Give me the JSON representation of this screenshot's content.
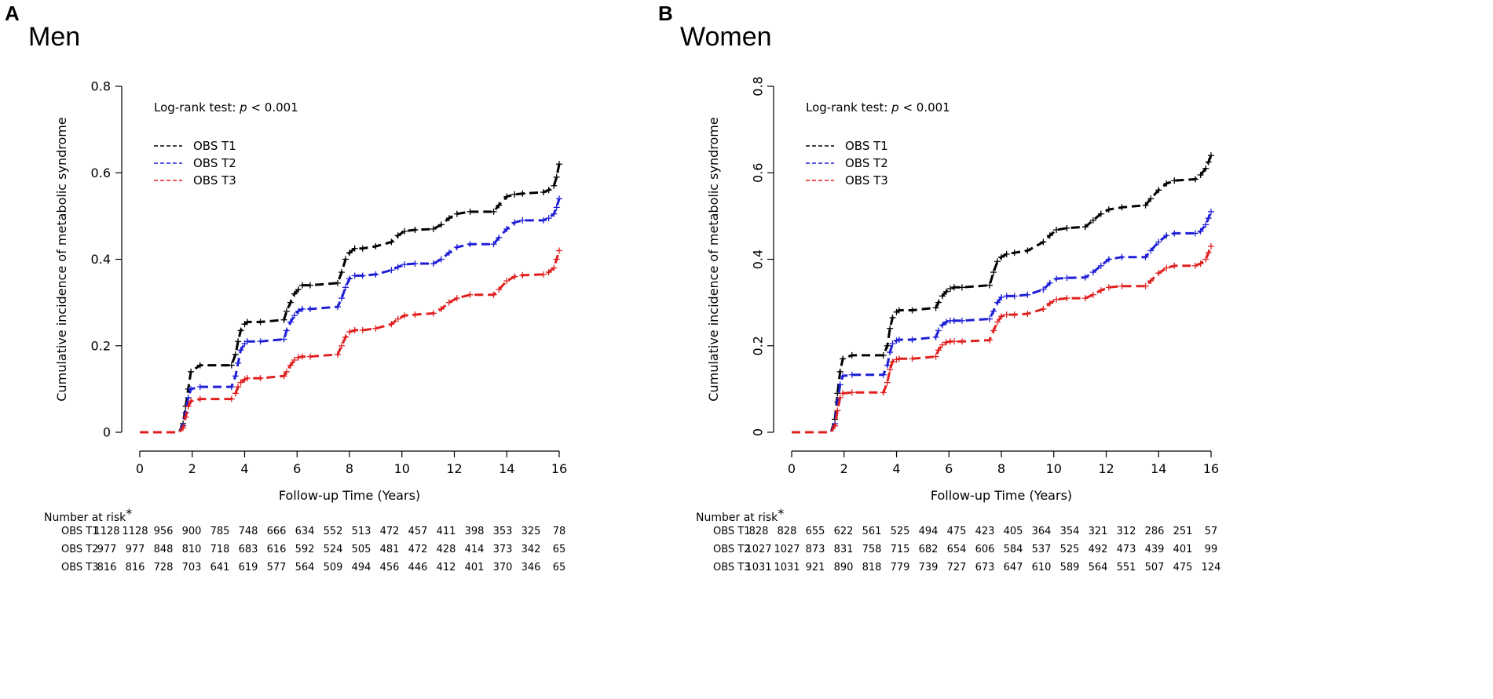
{
  "chart_data": [
    {
      "type": "line",
      "panel_letter": "A",
      "title": "Men",
      "xlabel": "Follow-up Time (Years)",
      "ylabel": "Cumulative incidence of metabolic syndrome",
      "xlim": [
        0,
        16
      ],
      "ylim": [
        0,
        0.8
      ],
      "xticks": [
        "0",
        "2",
        "4",
        "6",
        "8",
        "10",
        "12",
        "14",
        "16"
      ],
      "yticks": [
        "0",
        "0.2",
        "0.4",
        "0.6",
        "0.8"
      ],
      "annotation": {
        "prefix": "Log-rank test:  ",
        "italic": "p",
        "suffix": " < 0.001"
      },
      "series": [
        {
          "name": "OBS T1",
          "color": "#000000",
          "x": [
            0,
            1.5,
            1.65,
            1.75,
            1.85,
            1.95,
            2.3,
            3.5,
            3.65,
            3.75,
            3.85,
            4.0,
            4.1,
            4.6,
            5.5,
            5.6,
            5.75,
            5.9,
            6.05,
            6.2,
            6.5,
            7.55,
            7.7,
            7.85,
            8.0,
            8.2,
            8.5,
            9.0,
            9.6,
            9.85,
            10.1,
            10.5,
            11.2,
            11.5,
            11.8,
            12.1,
            12.6,
            13.5,
            13.7,
            14.0,
            14.3,
            14.6,
            15.4,
            15.6,
            15.8,
            15.9,
            16.0
          ],
          "y": [
            0,
            0,
            0.02,
            0.06,
            0.1,
            0.14,
            0.155,
            0.155,
            0.18,
            0.21,
            0.235,
            0.25,
            0.255,
            0.255,
            0.26,
            0.28,
            0.3,
            0.32,
            0.33,
            0.34,
            0.34,
            0.345,
            0.37,
            0.4,
            0.415,
            0.425,
            0.425,
            0.43,
            0.44,
            0.455,
            0.465,
            0.468,
            0.47,
            0.48,
            0.495,
            0.505,
            0.51,
            0.51,
            0.525,
            0.545,
            0.55,
            0.552,
            0.555,
            0.56,
            0.57,
            0.59,
            0.62
          ]
        },
        {
          "name": "OBS T2",
          "color": "#1f1fd8",
          "x": [
            0,
            1.5,
            1.65,
            1.75,
            1.85,
            1.95,
            2.3,
            3.5,
            3.65,
            3.75,
            3.85,
            4.0,
            4.1,
            4.6,
            5.5,
            5.6,
            5.75,
            5.9,
            6.05,
            6.2,
            6.5,
            7.55,
            7.7,
            7.85,
            8.0,
            8.2,
            8.5,
            9.0,
            9.6,
            9.85,
            10.1,
            10.5,
            11.2,
            11.5,
            11.8,
            12.1,
            12.6,
            13.5,
            13.7,
            14.0,
            14.3,
            14.6,
            15.4,
            15.6,
            15.8,
            15.9,
            16.0
          ],
          "y": [
            0,
            0,
            0.015,
            0.045,
            0.08,
            0.1,
            0.105,
            0.105,
            0.13,
            0.16,
            0.19,
            0.205,
            0.21,
            0.21,
            0.215,
            0.235,
            0.255,
            0.27,
            0.28,
            0.285,
            0.285,
            0.29,
            0.31,
            0.335,
            0.355,
            0.362,
            0.362,
            0.365,
            0.375,
            0.382,
            0.388,
            0.39,
            0.39,
            0.4,
            0.415,
            0.428,
            0.435,
            0.435,
            0.45,
            0.47,
            0.485,
            0.49,
            0.49,
            0.495,
            0.505,
            0.52,
            0.54
          ]
        },
        {
          "name": "OBS T3",
          "color": "#e11f1f",
          "x": [
            0,
            1.5,
            1.65,
            1.75,
            1.85,
            1.95,
            2.3,
            3.5,
            3.65,
            3.75,
            3.85,
            4.0,
            4.1,
            4.6,
            5.5,
            5.6,
            5.75,
            5.9,
            6.05,
            6.2,
            6.5,
            7.55,
            7.7,
            7.85,
            8.0,
            8.2,
            8.5,
            9.0,
            9.6,
            9.85,
            10.1,
            10.5,
            11.2,
            11.5,
            11.8,
            12.1,
            12.6,
            13.5,
            13.7,
            14.0,
            14.3,
            14.6,
            15.4,
            15.6,
            15.8,
            15.9,
            16.0
          ],
          "y": [
            0,
            0,
            0.01,
            0.035,
            0.06,
            0.072,
            0.077,
            0.077,
            0.09,
            0.105,
            0.115,
            0.122,
            0.125,
            0.125,
            0.13,
            0.14,
            0.155,
            0.167,
            0.173,
            0.175,
            0.175,
            0.18,
            0.2,
            0.22,
            0.232,
            0.236,
            0.236,
            0.24,
            0.25,
            0.262,
            0.27,
            0.272,
            0.275,
            0.285,
            0.3,
            0.31,
            0.318,
            0.318,
            0.33,
            0.35,
            0.36,
            0.363,
            0.365,
            0.37,
            0.38,
            0.4,
            0.42
          ]
        }
      ],
      "risk_table": {
        "title": "Number at risk",
        "star": "*",
        "rows": [
          {
            "label": "OBS T1",
            "values": [
              "1128",
              "1128",
              "956",
              "900",
              "785",
              "748",
              "666",
              "634",
              "552",
              "513",
              "472",
              "457",
              "411",
              "398",
              "353",
              "325",
              "78"
            ]
          },
          {
            "label": "OBS T2",
            "values": [
              "977",
              "977",
              "848",
              "810",
              "718",
              "683",
              "616",
              "592",
              "524",
              "505",
              "481",
              "472",
              "428",
              "414",
              "373",
              "342",
              "65"
            ]
          },
          {
            "label": "OBS T3",
            "values": [
              "816",
              "816",
              "728",
              "703",
              "641",
              "619",
              "577",
              "564",
              "509",
              "494",
              "456",
              "446",
              "412",
              "401",
              "370",
              "346",
              "65"
            ]
          }
        ]
      }
    },
    {
      "type": "line",
      "panel_letter": "B",
      "title": "Women",
      "xlabel": "Follow-up Time (Years)",
      "ylabel": "Cumulative incidence of metabolic syndrome",
      "xlim": [
        0,
        16
      ],
      "ylim": [
        0,
        0.8
      ],
      "xticks": [
        "0",
        "2",
        "4",
        "6",
        "8",
        "10",
        "12",
        "14",
        "16"
      ],
      "yticks": [
        "0",
        "0.2",
        "0.4",
        "0.6",
        "0.8"
      ],
      "annotation": {
        "prefix": "Log-rank test:  ",
        "italic": "p",
        "suffix": " < 0.001"
      },
      "series": [
        {
          "name": "OBS T1",
          "color": "#000000",
          "x": [
            0,
            1.5,
            1.65,
            1.75,
            1.85,
            1.95,
            2.3,
            3.5,
            3.65,
            3.75,
            3.85,
            4.0,
            4.1,
            4.6,
            5.5,
            5.6,
            5.75,
            5.9,
            6.05,
            6.2,
            6.5,
            7.55,
            7.7,
            7.85,
            8.0,
            8.2,
            8.5,
            9.0,
            9.6,
            9.85,
            10.1,
            10.5,
            11.2,
            11.5,
            11.8,
            12.1,
            12.6,
            13.5,
            13.7,
            14.0,
            14.3,
            14.6,
            15.4,
            15.6,
            15.8,
            15.9,
            16.0
          ],
          "y": [
            0,
            0,
            0.03,
            0.09,
            0.14,
            0.17,
            0.178,
            0.178,
            0.2,
            0.24,
            0.265,
            0.278,
            0.282,
            0.282,
            0.288,
            0.3,
            0.315,
            0.325,
            0.332,
            0.335,
            0.335,
            0.34,
            0.37,
            0.395,
            0.405,
            0.412,
            0.415,
            0.42,
            0.44,
            0.455,
            0.468,
            0.472,
            0.475,
            0.49,
            0.505,
            0.515,
            0.52,
            0.525,
            0.54,
            0.56,
            0.575,
            0.582,
            0.585,
            0.595,
            0.61,
            0.625,
            0.64
          ]
        },
        {
          "name": "OBS T2",
          "color": "#1f1fd8",
          "x": [
            0,
            1.5,
            1.65,
            1.75,
            1.85,
            1.95,
            2.3,
            3.5,
            3.65,
            3.75,
            3.85,
            4.0,
            4.1,
            4.6,
            5.5,
            5.6,
            5.75,
            5.9,
            6.05,
            6.2,
            6.5,
            7.55,
            7.7,
            7.85,
            8.0,
            8.2,
            8.5,
            9.0,
            9.6,
            9.85,
            10.1,
            10.5,
            11.2,
            11.5,
            11.8,
            12.1,
            12.6,
            13.5,
            13.7,
            14.0,
            14.3,
            14.6,
            15.4,
            15.6,
            15.8,
            15.9,
            16.0
          ],
          "y": [
            0,
            0,
            0.02,
            0.07,
            0.11,
            0.13,
            0.133,
            0.133,
            0.155,
            0.185,
            0.205,
            0.212,
            0.214,
            0.214,
            0.22,
            0.235,
            0.248,
            0.255,
            0.258,
            0.258,
            0.258,
            0.262,
            0.28,
            0.3,
            0.312,
            0.315,
            0.315,
            0.318,
            0.33,
            0.345,
            0.355,
            0.357,
            0.358,
            0.37,
            0.385,
            0.4,
            0.405,
            0.405,
            0.42,
            0.44,
            0.455,
            0.46,
            0.46,
            0.465,
            0.48,
            0.495,
            0.51
          ]
        },
        {
          "name": "OBS T3",
          "color": "#e11f1f",
          "x": [
            0,
            1.5,
            1.65,
            1.75,
            1.85,
            1.95,
            2.3,
            3.5,
            3.65,
            3.75,
            3.85,
            4.0,
            4.1,
            4.6,
            5.5,
            5.6,
            5.75,
            5.9,
            6.05,
            6.2,
            6.5,
            7.55,
            7.7,
            7.85,
            8.0,
            8.2,
            8.5,
            9.0,
            9.6,
            9.85,
            10.1,
            10.5,
            11.2,
            11.5,
            11.8,
            12.1,
            12.6,
            13.5,
            13.7,
            14.0,
            14.3,
            14.6,
            15.4,
            15.6,
            15.8,
            15.9,
            16.0
          ],
          "y": [
            0,
            0,
            0.015,
            0.05,
            0.08,
            0.09,
            0.092,
            0.092,
            0.115,
            0.145,
            0.163,
            0.168,
            0.17,
            0.17,
            0.175,
            0.19,
            0.202,
            0.208,
            0.21,
            0.21,
            0.21,
            0.213,
            0.235,
            0.255,
            0.268,
            0.272,
            0.272,
            0.274,
            0.285,
            0.298,
            0.307,
            0.31,
            0.31,
            0.318,
            0.328,
            0.335,
            0.338,
            0.338,
            0.35,
            0.368,
            0.38,
            0.385,
            0.385,
            0.39,
            0.4,
            0.415,
            0.43
          ]
        }
      ],
      "risk_table": {
        "title": "Number at risk",
        "star": "*",
        "rows": [
          {
            "label": "OBS T1",
            "values": [
              "828",
              "828",
              "655",
              "622",
              "561",
              "525",
              "494",
              "475",
              "423",
              "405",
              "364",
              "354",
              "321",
              "312",
              "286",
              "251",
              "57"
            ]
          },
          {
            "label": "OBS T2",
            "values": [
              "1027",
              "1027",
              "873",
              "831",
              "758",
              "715",
              "682",
              "654",
              "606",
              "584",
              "537",
              "525",
              "492",
              "473",
              "439",
              "401",
              "99"
            ]
          },
          {
            "label": "OBS T3",
            "values": [
              "1031",
              "1031",
              "921",
              "890",
              "818",
              "779",
              "739",
              "727",
              "673",
              "647",
              "610",
              "589",
              "564",
              "551",
              "507",
              "475",
              "124"
            ]
          }
        ]
      }
    }
  ]
}
